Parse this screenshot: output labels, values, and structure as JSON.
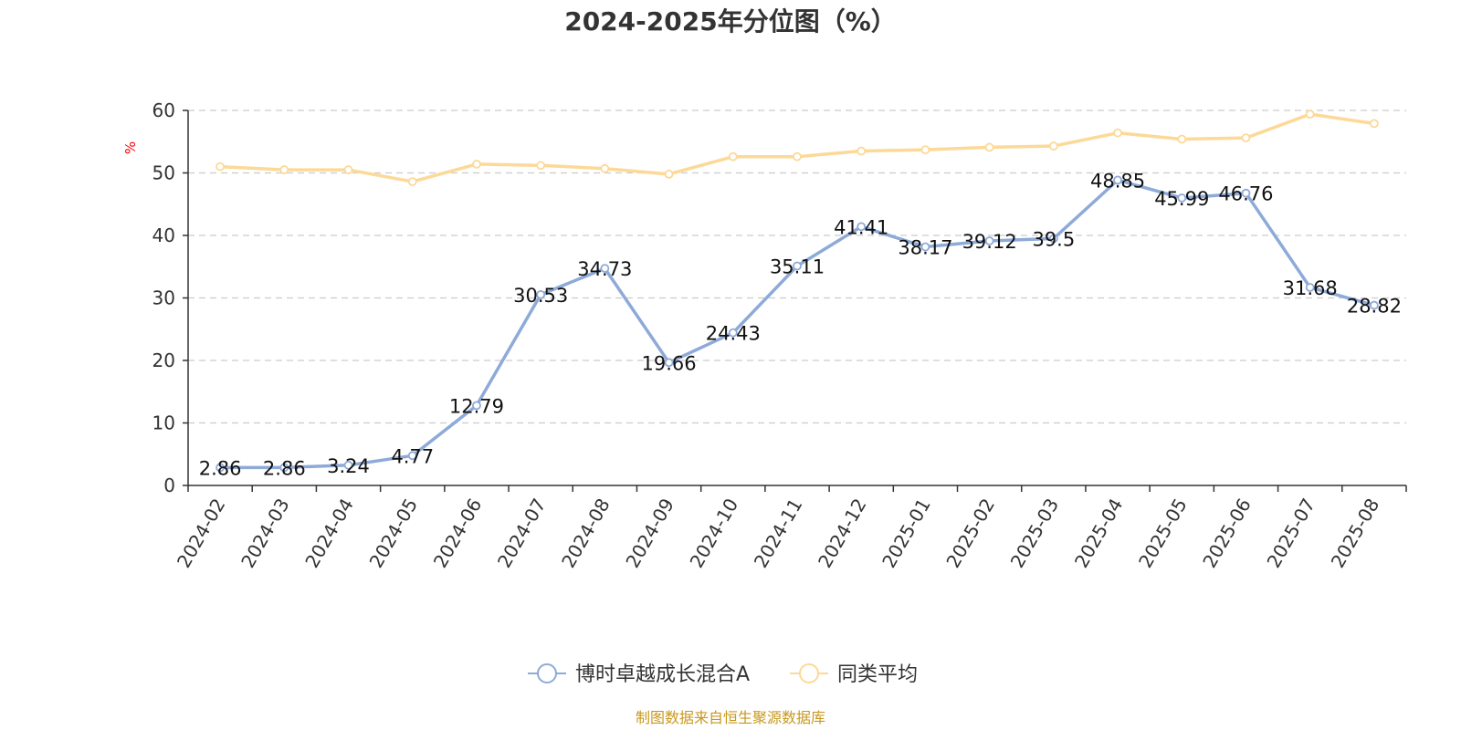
{
  "chart_data": {
    "type": "line",
    "title": "2024-2025年分位图（%）",
    "xlabel": "",
    "ylabel": "%",
    "ylim": [
      0,
      60
    ],
    "yticks": [
      0,
      10,
      20,
      30,
      40,
      50,
      60
    ],
    "grid": true,
    "legend_position": "bottom-center",
    "categories": [
      "2024-02",
      "2024-03",
      "2024-04",
      "2024-05",
      "2024-06",
      "2024-07",
      "2024-08",
      "2024-09",
      "2024-10",
      "2024-11",
      "2024-12",
      "2025-01",
      "2025-02",
      "2025-03",
      "2025-04",
      "2025-05",
      "2025-06",
      "2025-07",
      "2025-08"
    ],
    "series": [
      {
        "name": "博时卓越成长混合A",
        "color": "#8eaad8",
        "show_labels": true,
        "values": [
          2.86,
          2.86,
          3.24,
          4.77,
          12.79,
          30.53,
          34.73,
          19.66,
          24.43,
          35.11,
          41.41,
          38.17,
          39.12,
          39.5,
          48.85,
          45.99,
          46.76,
          31.68,
          28.82
        ],
        "labels": [
          "2.86",
          "2.86",
          "3.24",
          "4.77",
          "12.79",
          "30.53",
          "34.73",
          "19.66",
          "24.43",
          "35.11",
          "41.41",
          "38.17",
          "39.12",
          "39.5",
          "48.85",
          "45.99",
          "46.76",
          "31.68",
          "28.82"
        ]
      },
      {
        "name": "同类平均",
        "color": "#fcd997",
        "show_labels": false,
        "values": [
          51.0,
          50.5,
          50.5,
          48.6,
          51.4,
          51.2,
          50.7,
          49.8,
          52.6,
          52.6,
          53.5,
          53.7,
          54.1,
          54.3,
          56.4,
          55.4,
          55.6,
          59.4,
          57.9
        ]
      }
    ],
    "source": "制图数据来自恒生聚源数据库",
    "colors": {
      "axis": "#333333",
      "grid": "#cccccc",
      "ylabel": "#ff0000",
      "source": "#c8981e"
    }
  }
}
